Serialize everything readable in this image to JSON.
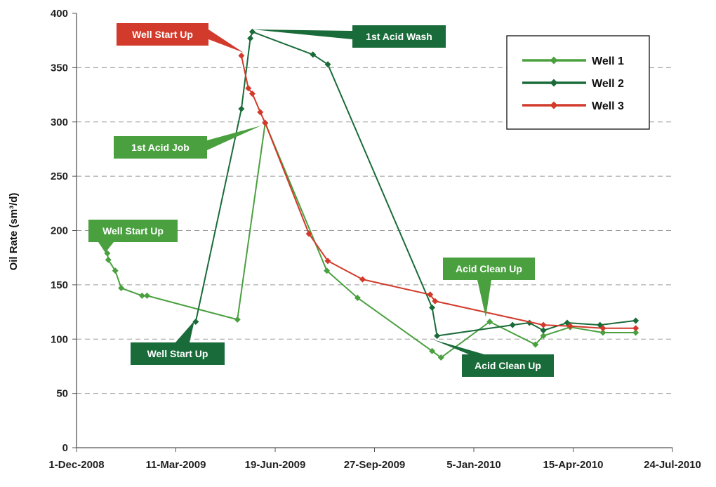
{
  "chart_data": {
    "type": "line",
    "title": "",
    "xlabel": "",
    "ylabel": "Oil Rate (sm³/d)",
    "ylim": [
      0,
      400
    ],
    "xlim": [
      "2008-12-01",
      "2010-07-24"
    ],
    "x_ticks": [
      "1-Dec-2008",
      "11-Mar-2009",
      "19-Jun-2009",
      "27-Sep-2009",
      "5-Jan-2010",
      "15-Apr-2010",
      "24-Jul-2010"
    ],
    "x_tick_dates": [
      "2008-12-01",
      "2009-03-11",
      "2009-06-19",
      "2009-09-27",
      "2010-01-05",
      "2010-04-15",
      "2010-07-24"
    ],
    "y_ticks": [
      0,
      50,
      100,
      150,
      200,
      250,
      300,
      350,
      400
    ],
    "grid": "horizontal-dashed",
    "legend": "top-right",
    "series": [
      {
        "name": "Well 1",
        "color": "#4aa03f",
        "points": [
          [
            "2009-01-01",
            179
          ],
          [
            "2009-01-02",
            173
          ],
          [
            "2009-01-09",
            163
          ],
          [
            "2009-01-15",
            147
          ],
          [
            "2009-02-05",
            140
          ],
          [
            "2009-02-10",
            140
          ],
          [
            "2009-05-12",
            118
          ],
          [
            "2009-06-09",
            299
          ],
          [
            "2009-08-10",
            163
          ],
          [
            "2009-09-10",
            138
          ],
          [
            "2009-11-24",
            89
          ],
          [
            "2009-12-03",
            83
          ],
          [
            "2010-01-21",
            116
          ],
          [
            "2010-03-08",
            95
          ],
          [
            "2010-03-16",
            103
          ],
          [
            "2010-04-12",
            111
          ],
          [
            "2010-05-15",
            106
          ],
          [
            "2010-06-17",
            106
          ]
        ]
      },
      {
        "name": "Well 2",
        "color": "#1a6b3a",
        "points": [
          [
            "2009-03-31",
            116
          ],
          [
            "2009-05-16",
            312
          ],
          [
            "2009-05-25",
            377
          ],
          [
            "2009-05-27",
            383
          ],
          [
            "2009-07-27",
            362
          ],
          [
            "2009-08-11",
            353
          ],
          [
            "2009-11-24",
            129
          ],
          [
            "2009-11-29",
            103
          ],
          [
            "2010-02-13",
            113
          ],
          [
            "2010-03-02",
            115
          ],
          [
            "2010-03-16",
            108
          ],
          [
            "2010-04-09",
            115
          ],
          [
            "2010-05-12",
            113
          ],
          [
            "2010-06-17",
            117
          ]
        ]
      },
      {
        "name": "Well 3",
        "color": "#d23a2b",
        "points": [
          [
            "2009-05-16",
            361
          ],
          [
            "2009-05-23",
            331
          ],
          [
            "2009-05-27",
            326
          ],
          [
            "2009-06-04",
            309
          ],
          [
            "2009-06-09",
            299
          ],
          [
            "2009-07-23",
            197
          ],
          [
            "2009-08-11",
            172
          ],
          [
            "2009-09-15",
            155
          ],
          [
            "2009-11-22",
            141
          ],
          [
            "2009-11-27",
            135
          ],
          [
            "2010-03-16",
            113
          ],
          [
            "2010-04-12",
            112
          ],
          [
            "2010-05-15",
            110
          ],
          [
            "2010-06-17",
            110
          ]
        ]
      }
    ],
    "annotations": [
      {
        "text": "Well Start Up",
        "series": "Well 3",
        "color": "#d23a2b"
      },
      {
        "text": "1st Acid Wash",
        "series": "Well 2",
        "color": "#1a6b3a"
      },
      {
        "text": "1st Acid Job",
        "series": "Well 1",
        "color": "#4aa03f"
      },
      {
        "text": "Well Start Up",
        "series": "Well 1",
        "color": "#4aa03f"
      },
      {
        "text": "Well Start Up",
        "series": "Well 2",
        "color": "#1a6b3a"
      },
      {
        "text": "Acid Clean Up",
        "series": "Well 1",
        "color": "#4aa03f"
      },
      {
        "text": "Acid Clean Up",
        "series": "Well 2",
        "color": "#1a6b3a"
      }
    ]
  }
}
